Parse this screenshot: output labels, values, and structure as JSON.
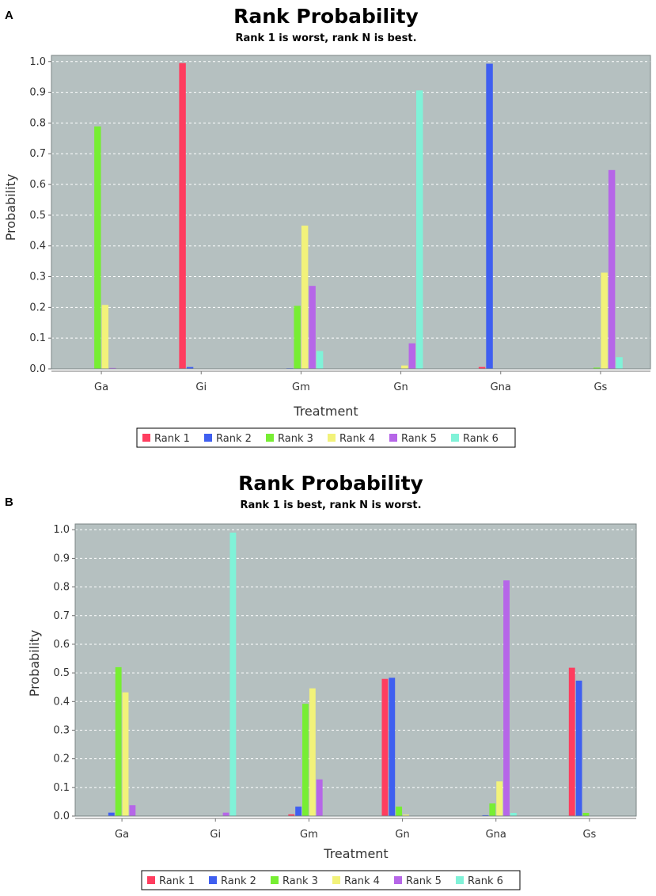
{
  "chart_data": [
    {
      "panel": "A",
      "type": "bar",
      "title": "Rank Probability",
      "subtitle": "Rank 1 is worst, rank N is best.",
      "xlabel": "Treatment",
      "ylabel": "Probability",
      "ylim": [
        0,
        1.02
      ],
      "yticks": [
        "0.0",
        "0.1",
        "0.2",
        "0.3",
        "0.4",
        "0.5",
        "0.6",
        "0.7",
        "0.8",
        "0.9",
        "1.0"
      ],
      "grid": true,
      "legend_position": "bottom",
      "categories": [
        "Ga",
        "Gi",
        "Gm",
        "Gn",
        "Gna",
        "Gs"
      ],
      "series": [
        {
          "name": "Rank 1",
          "color": "#ff3d5f",
          "values": [
            0,
            0.995,
            0,
            0,
            0.006,
            0
          ]
        },
        {
          "name": "Rank 2",
          "color": "#3f5ff0",
          "values": [
            0,
            0.006,
            0.002,
            0,
            0.993,
            0
          ]
        },
        {
          "name": "Rank 3",
          "color": "#77ee33",
          "values": [
            0.789,
            0,
            0.205,
            0,
            0.001,
            0.004
          ]
        },
        {
          "name": "Rank 4",
          "color": "#f2f27a",
          "values": [
            0.208,
            0,
            0.466,
            0.011,
            0,
            0.313
          ]
        },
        {
          "name": "Rank 5",
          "color": "#b666e8",
          "values": [
            0.003,
            0,
            0.27,
            0.083,
            0,
            0.647
          ]
        },
        {
          "name": "Rank 6",
          "color": "#80f2d8",
          "values": [
            0,
            0,
            0.058,
            0.906,
            0,
            0.038
          ]
        }
      ]
    },
    {
      "panel": "B",
      "type": "bar",
      "title": "Rank Probability",
      "subtitle": "Rank 1 is best, rank N is worst.",
      "xlabel": "Treatment",
      "ylabel": "Probability",
      "ylim": [
        0,
        1.02
      ],
      "yticks": [
        "0.0",
        "0.1",
        "0.2",
        "0.3",
        "0.4",
        "0.5",
        "0.6",
        "0.7",
        "0.8",
        "0.9",
        "1.0"
      ],
      "grid": true,
      "legend_position": "bottom",
      "categories": [
        "Ga",
        "Gi",
        "Gm",
        "Gn",
        "Gna",
        "Gs"
      ],
      "series": [
        {
          "name": "Rank 1",
          "color": "#ff3d5f",
          "values": [
            0,
            0,
            0.006,
            0.479,
            0,
            0.518
          ]
        },
        {
          "name": "Rank 2",
          "color": "#3f5ff0",
          "values": [
            0.012,
            0,
            0.033,
            0.483,
            0.003,
            0.473
          ]
        },
        {
          "name": "Rank 3",
          "color": "#77ee33",
          "values": [
            0.52,
            0,
            0.392,
            0.033,
            0.044,
            0.011
          ]
        },
        {
          "name": "Rank 4",
          "color": "#f2f27a",
          "values": [
            0.432,
            0,
            0.446,
            0.005,
            0.121,
            0
          ]
        },
        {
          "name": "Rank 5",
          "color": "#b666e8",
          "values": [
            0.038,
            0.012,
            0.128,
            0,
            0.823,
            0
          ]
        },
        {
          "name": "Rank 6",
          "color": "#80f2d8",
          "values": [
            0,
            0.99,
            0,
            0,
            0.011,
            0
          ]
        }
      ]
    }
  ]
}
